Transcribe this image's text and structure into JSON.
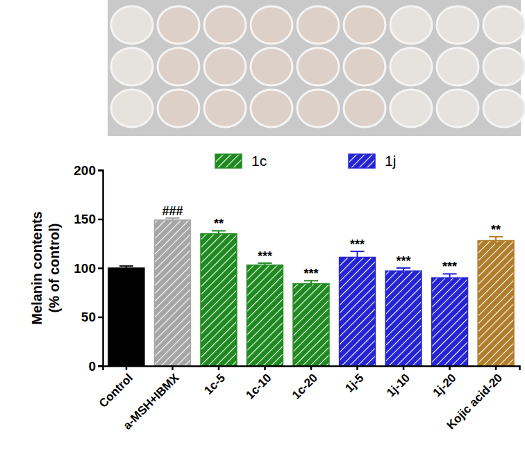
{
  "chart_data": {
    "type": "bar",
    "y_label": [
      "Melanin contents",
      "(% of control)"
    ],
    "categories": [
      "Control",
      "a-MSH+IBMX",
      "1c-5",
      "1c-10",
      "1c-20",
      "1j-5",
      "1j-10",
      "1j-20",
      "Kojic acid-20"
    ],
    "values": [
      100,
      149,
      135,
      103,
      84,
      111,
      97,
      90,
      128
    ],
    "errors": [
      2,
      2,
      3,
      2,
      3,
      6,
      3,
      4,
      4
    ],
    "annotations": [
      "",
      "###",
      "**",
      "***",
      "***",
      "***",
      "***",
      "***",
      "**"
    ],
    "colors": [
      "#000000",
      "#a6a6a6",
      "#1f8a1f",
      "#1f8a1f",
      "#1f8a1f",
      "#2424d4",
      "#2424d4",
      "#2424d4",
      "#b07d2a"
    ],
    "legend_items": [
      {
        "name": "1c",
        "color": "#1f8a1f"
      },
      {
        "name": "1j",
        "color": "#2424d4"
      }
    ],
    "ylim": [
      0,
      200
    ],
    "yticks": [
      0,
      50,
      100,
      150,
      200
    ],
    "grid": false,
    "legend": "top"
  }
}
